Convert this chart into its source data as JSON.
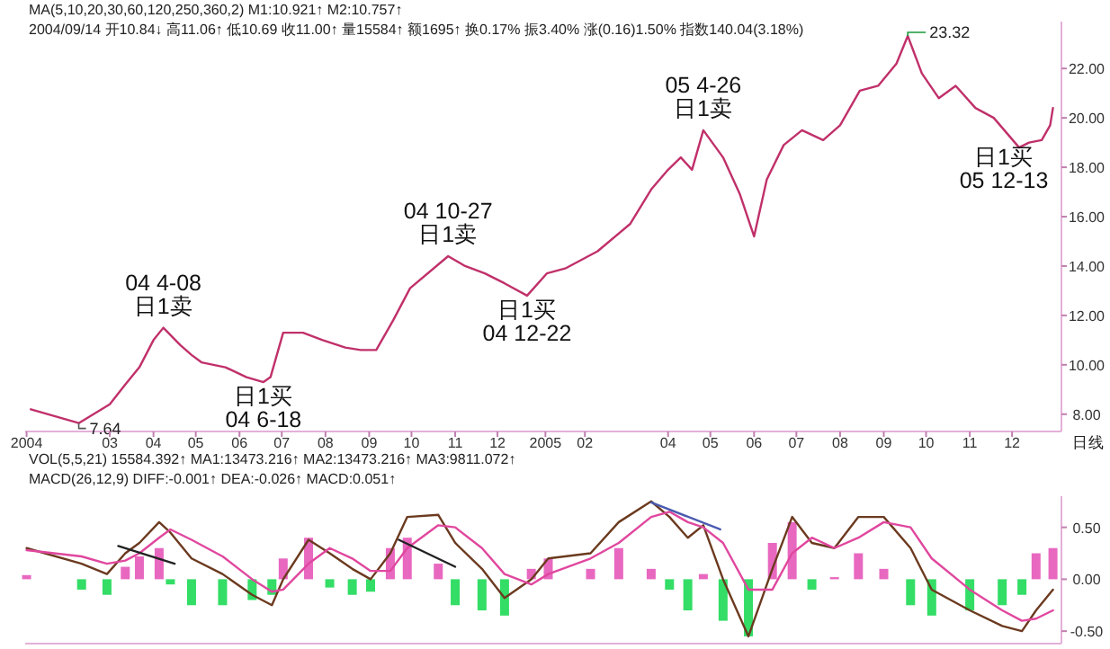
{
  "chart_data": [
    {
      "type": "line",
      "x": [
        "2004-01-05",
        "2004-02-08",
        "2004-03-01",
        "2004-03-12",
        "2004-03-22",
        "2004-04-01",
        "2004-04-08",
        "2004-04-20",
        "2004-04-28",
        "2004-05-05",
        "2004-05-22",
        "2004-06-06",
        "2004-06-18",
        "2004-06-23",
        "2004-07-02",
        "2004-07-16",
        "2004-07-30",
        "2004-08-15",
        "2004-08-26",
        "2004-09-06",
        "2004-09-18",
        "2004-09-30",
        "2004-10-27",
        "2004-11-08",
        "2004-11-22",
        "2004-12-06",
        "2004-12-22",
        "2005-01-05",
        "2005-01-18",
        "2005-02-10",
        "2005-03-05",
        "2005-03-20",
        "2005-04-01",
        "2005-04-10",
        "2005-04-18",
        "2005-04-26",
        "2005-05-10",
        "2005-05-22",
        "2005-06-01",
        "2005-06-10",
        "2005-06-22",
        "2005-07-05",
        "2005-07-20",
        "2005-08-01",
        "2005-08-15",
        "2005-08-28",
        "2005-09-10",
        "2005-09-18",
        "2005-09-28",
        "2005-10-10",
        "2005-10-22",
        "2005-11-05",
        "2005-11-18",
        "2005-12-06",
        "2005-12-13",
        "2005-12-22",
        "2005-12-28",
        "2005-12-30"
      ],
      "series": [
        {
          "color": "#c0306a",
          "values": [
            8.2,
            7.64,
            8.4,
            9.2,
            9.9,
            11.0,
            11.5,
            10.8,
            10.4,
            10.1,
            9.9,
            9.5,
            9.3,
            9.5,
            11.3,
            11.3,
            11.0,
            10.7,
            10.6,
            10.6,
            11.8,
            13.1,
            14.4,
            14.0,
            13.7,
            13.3,
            12.8,
            13.7,
            13.9,
            14.6,
            15.7,
            17.1,
            17.9,
            18.4,
            17.9,
            19.5,
            18.4,
            16.9,
            15.2,
            17.5,
            18.9,
            19.5,
            19.1,
            19.7,
            21.1,
            21.3,
            22.2,
            23.32,
            21.8,
            20.8,
            21.3,
            20.4,
            20.0,
            18.8,
            19.0,
            19.1,
            19.7,
            20.4
          ]
        }
      ],
      "xlim": [
        "2004-01-01",
        "2006-01-05"
      ],
      "xticks": [
        {
          "value": "2004-01-02",
          "label": "2004"
        },
        {
          "value": "2004-03-01",
          "label": "03"
        },
        {
          "value": "2004-04-01",
          "label": "04"
        },
        {
          "value": "2004-05-01",
          "label": "05"
        },
        {
          "value": "2004-06-01",
          "label": "06"
        },
        {
          "value": "2004-07-01",
          "label": "07"
        },
        {
          "value": "2004-08-01",
          "label": "08"
        },
        {
          "value": "2004-09-01",
          "label": "09"
        },
        {
          "value": "2004-10-01",
          "label": "10"
        },
        {
          "value": "2004-11-01",
          "label": "11"
        },
        {
          "value": "2004-12-01",
          "label": "12"
        },
        {
          "value": "2005-01-04",
          "label": "2005"
        },
        {
          "value": "2005-02-01",
          "label": "02"
        },
        {
          "value": "2005-04-01",
          "label": "04"
        },
        {
          "value": "2005-05-01",
          "label": "05"
        },
        {
          "value": "2005-06-01",
          "label": "06"
        },
        {
          "value": "2005-07-01",
          "label": "07"
        },
        {
          "value": "2005-08-01",
          "label": "08"
        },
        {
          "value": "2005-09-01",
          "label": "09"
        },
        {
          "value": "2005-10-01",
          "label": "10"
        },
        {
          "value": "2005-11-01",
          "label": "11"
        },
        {
          "value": "2005-12-01",
          "label": "12"
        }
      ],
      "ylim": [
        7.3,
        23.9
      ],
      "yticks": [
        {
          "value": 8,
          "label": "8.00"
        },
        {
          "value": 10,
          "label": "10.00"
        },
        {
          "value": 12,
          "label": "12.00"
        },
        {
          "value": 14,
          "label": "14.00"
        },
        {
          "value": 16,
          "label": "16.00"
        },
        {
          "value": 18,
          "label": "18.00"
        },
        {
          "value": 20,
          "label": "20.00"
        },
        {
          "value": 22,
          "label": "22.00"
        }
      ],
      "annotations": [
        "MA(5,10,20,30,60,120,250,360,2) M1:10.921↑ M2:10.757↑",
        "2004/09/14 开10.84↓ 高11.06↑ 低10.69 收11.00↑ 量15584↑ 额1695↑ 换0.17% 振3.40% 涨(0.16)1.50% 指数140.04(3.18%)",
        "VOL(5,5,21) 15584.392↑ MA1:13473.216↑ MA2:13473.216↑ MA3:9811.072↑",
        "日线",
        {
          "text": "04 4-08\n日1卖",
          "x": "2004-04-08",
          "y": 11.5
        },
        {
          "text": "日1买\n04 6-18",
          "x": "2004-06-18",
          "y": 9.3
        },
        {
          "text": "04 10-27\n日1卖",
          "x": "2004-10-27",
          "y": 14.4
        },
        {
          "text": "日1买\n04 12-22",
          "x": "2004-12-22",
          "y": 12.8
        },
        {
          "text": "05 4-26\n日1卖",
          "x": "2005-04-26",
          "y": 19.5
        },
        {
          "text": "日1买\n05 12-13",
          "x": "2005-12-13",
          "y": 19.0
        },
        {
          "text": "23.32",
          "x": "2005-09-18",
          "y": 23.32
        },
        {
          "text": "7.64",
          "x": "2004-02-08",
          "y": 7.64
        }
      ],
      "grid": false
    },
    {
      "type": "bar",
      "x": [
        "2004-01-02",
        "2004-02-10",
        "2004-02-28",
        "2004-03-12",
        "2004-03-22",
        "2004-04-05",
        "2004-04-13",
        "2004-04-28",
        "2004-05-20",
        "2004-06-10",
        "2004-06-24",
        "2004-07-02",
        "2004-07-20",
        "2004-08-04",
        "2004-08-20",
        "2004-09-02",
        "2004-09-16",
        "2004-09-28",
        "2004-10-20",
        "2004-11-01",
        "2004-11-20",
        "2004-12-06",
        "2004-12-25",
        "2005-01-06",
        "2005-02-05",
        "2005-02-25",
        "2005-03-20",
        "2005-04-02",
        "2005-04-15",
        "2005-04-26",
        "2005-05-10",
        "2005-05-28",
        "2005-06-14",
        "2005-06-28",
        "2005-07-12",
        "2005-07-28",
        "2005-08-14",
        "2005-09-01",
        "2005-09-20",
        "2005-10-05",
        "2005-11-01",
        "2005-11-24",
        "2005-12-08",
        "2005-12-18",
        "2005-12-30"
      ],
      "series": [
        {
          "colors": [
            "#e868c0",
            "#33dd66",
            "#33dd66",
            "#e868c0",
            "#e868c0",
            "#e868c0",
            "#33dd66",
            "#33dd66",
            "#33dd66",
            "#33dd66",
            "#33dd66",
            "#e868c0",
            "#e868c0",
            "#33dd66",
            "#33dd66",
            "#33dd66",
            "#e868c0",
            "#e868c0",
            "#e868c0",
            "#33dd66",
            "#33dd66",
            "#33dd66",
            "#e868c0",
            "#e868c0",
            "#e868c0",
            "#e868c0",
            "#e868c0",
            "#33dd66",
            "#33dd66",
            "#e868c0",
            "#33dd66",
            "#33dd66",
            "#e868c0",
            "#e868c0",
            "#33dd66",
            "#e868c0",
            "#e868c0",
            "#e868c0",
            "#33dd66",
            "#33dd66",
            "#33dd66",
            "#33dd66",
            "#33dd66",
            "#e868c0",
            "#e868c0"
          ],
          "values": [
            0.04,
            -0.1,
            -0.15,
            0.12,
            0.22,
            0.3,
            -0.05,
            -0.25,
            -0.25,
            -0.2,
            -0.15,
            0.2,
            0.4,
            -0.08,
            -0.15,
            -0.12,
            0.3,
            0.4,
            0.15,
            -0.25,
            -0.3,
            -0.35,
            0.1,
            0.2,
            0.1,
            0.3,
            0.1,
            -0.1,
            -0.3,
            0.05,
            -0.4,
            -0.55,
            0.35,
            0.55,
            -0.1,
            0.02,
            0.25,
            0.1,
            -0.25,
            -0.35,
            -0.3,
            -0.25,
            -0.15,
            0.25,
            0.3
          ]
        },
        {
          "type": "line",
          "color": "#6b3a1f",
          "values": [
            0.3,
            0.15,
            0.05,
            0.25,
            0.35,
            0.55,
            0.45,
            0.2,
            0.05,
            -0.15,
            -0.25,
            0.0,
            0.38,
            0.25,
            0.1,
            0.0,
            0.25,
            0.6,
            0.62,
            0.35,
            0.1,
            -0.18,
            0.0,
            0.2,
            0.25,
            0.55,
            0.75,
            0.6,
            0.4,
            0.52,
            0.0,
            -0.55,
            0.1,
            0.6,
            0.35,
            0.3,
            0.6,
            0.6,
            0.3,
            -0.1,
            -0.3,
            -0.45,
            -0.5,
            -0.3,
            -0.1
          ]
        },
        {
          "type": "line",
          "color": "#e0479e",
          "values": [
            0.28,
            0.22,
            0.15,
            0.18,
            0.25,
            0.4,
            0.48,
            0.38,
            0.22,
            0.0,
            -0.12,
            -0.1,
            0.15,
            0.3,
            0.2,
            0.08,
            0.08,
            0.3,
            0.52,
            0.5,
            0.3,
            0.05,
            -0.05,
            0.05,
            0.2,
            0.35,
            0.6,
            0.65,
            0.55,
            0.5,
            0.35,
            -0.1,
            -0.1,
            0.25,
            0.4,
            0.3,
            0.4,
            0.55,
            0.5,
            0.2,
            -0.1,
            -0.3,
            -0.4,
            -0.38,
            -0.3
          ]
        },
        {
          "type": "line",
          "color": "#222222",
          "x": [
            "2004-03-07",
            "2004-04-16"
          ],
          "values": [
            0.32,
            0.15
          ]
        },
        {
          "type": "line",
          "color": "#222222",
          "x": [
            "2004-09-22",
            "2004-11-01"
          ],
          "values": [
            0.38,
            0.12
          ]
        },
        {
          "type": "line",
          "color": "#4a5bb0",
          "x": [
            "2005-03-20",
            "2005-05-08"
          ],
          "values": [
            0.74,
            0.48
          ]
        }
      ],
      "xlim": [
        "2004-01-01",
        "2006-01-05"
      ],
      "ylim": [
        -0.62,
        0.8
      ],
      "yticks": [
        {
          "value": 0.5,
          "label": "0.50"
        },
        {
          "value": 0,
          "label": "0.00"
        },
        {
          "value": -0.5,
          "label": "-0.50"
        }
      ],
      "tick_labels": "y",
      "annotations": [
        "MACD(26,12,9) DIFF:-0.001↑ DEA:-0.026↑ MACD:0.051↑"
      ],
      "grid": false
    }
  ]
}
